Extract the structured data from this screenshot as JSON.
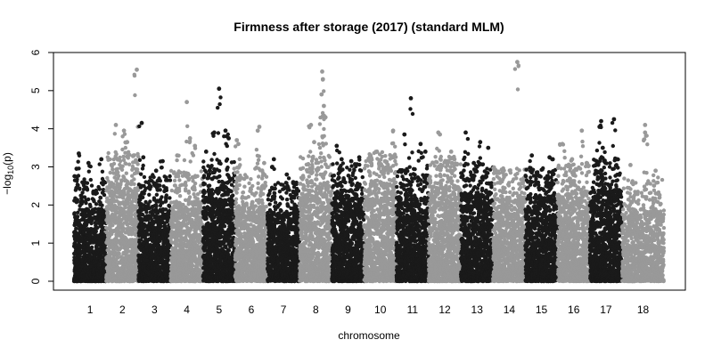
{
  "chart_data": {
    "type": "scatter",
    "subtype": "manhattan",
    "title": "Firmness after storage (2017) (standard MLM)",
    "xlabel": "chromosome",
    "ylabel_prefix": "−log",
    "ylabel_sub": "10",
    "ylabel_suffix": "(p)",
    "ylim": [
      0,
      6
    ],
    "yticks": [
      0,
      1,
      2,
      3,
      4,
      5,
      6
    ],
    "grid": false,
    "legend": "none",
    "colors": {
      "odd": "#1a1a1a",
      "even": "#999999"
    },
    "chromosomes": [
      {
        "label": "1",
        "color": "odd",
        "x_range": [
          0.0,
          1.0
        ],
        "base_max": 1.9,
        "peaks": [
          [
            0.15,
            3.35
          ],
          [
            0.08,
            2.95
          ],
          [
            0.45,
            3.1
          ],
          [
            0.85,
            3.2
          ]
        ]
      },
      {
        "label": "2",
        "color": "even",
        "x_range": [
          1.0,
          2.0
        ],
        "base_max": 2.6,
        "peaks": [
          [
            0.3,
            4.1
          ],
          [
            0.55,
            3.95
          ],
          [
            0.65,
            3.65
          ],
          [
            0.95,
            5.55
          ],
          [
            0.85,
            3.3
          ]
        ]
      },
      {
        "label": "3",
        "color": "odd",
        "x_range": [
          2.0,
          3.0
        ],
        "base_max": 2.0,
        "peaks": [
          [
            0.1,
            4.15
          ],
          [
            0.15,
            3.25
          ],
          [
            0.75,
            3.15
          ],
          [
            0.55,
            2.9
          ]
        ]
      },
      {
        "label": "4",
        "color": "even",
        "x_range": [
          3.0,
          4.0
        ],
        "base_max": 2.1,
        "peaks": [
          [
            0.5,
            4.7
          ],
          [
            0.6,
            3.75
          ],
          [
            0.75,
            3.55
          ],
          [
            0.2,
            3.3
          ]
        ]
      },
      {
        "label": "5",
        "color": "odd",
        "x_range": [
          4.0,
          5.0
        ],
        "base_max": 2.4,
        "peaks": [
          [
            0.5,
            5.05
          ],
          [
            0.35,
            3.9
          ],
          [
            0.7,
            3.95
          ],
          [
            0.8,
            3.75
          ],
          [
            0.1,
            3.4
          ]
        ]
      },
      {
        "label": "6",
        "color": "even",
        "x_range": [
          5.0,
          6.0
        ],
        "base_max": 2.0,
        "peaks": [
          [
            0.05,
            3.7
          ],
          [
            0.1,
            3.6
          ],
          [
            0.75,
            4.05
          ],
          [
            0.7,
            3.95
          ],
          [
            0.9,
            3.1
          ]
        ]
      },
      {
        "label": "7",
        "color": "odd",
        "x_range": [
          6.0,
          7.0
        ],
        "base_max": 1.8,
        "peaks": [
          [
            0.15,
            3.0
          ],
          [
            0.2,
            3.2
          ],
          [
            0.6,
            2.8
          ],
          [
            0.8,
            2.6
          ]
        ]
      },
      {
        "label": "8",
        "color": "even",
        "x_range": [
          7.0,
          8.0
        ],
        "base_max": 2.5,
        "peaks": [
          [
            0.35,
            4.1
          ],
          [
            0.45,
            3.65
          ],
          [
            0.7,
            5.5
          ],
          [
            0.72,
            5.3
          ],
          [
            0.75,
            4.6
          ],
          [
            0.68,
            4.9
          ],
          [
            0.8,
            4.3
          ]
        ]
      },
      {
        "label": "9",
        "color": "odd",
        "x_range": [
          8.0,
          9.0
        ],
        "base_max": 2.3,
        "peaks": [
          [
            0.15,
            3.55
          ],
          [
            0.3,
            3.2
          ],
          [
            0.6,
            3.15
          ],
          [
            0.85,
            3.25
          ]
        ]
      },
      {
        "label": "10",
        "color": "even",
        "x_range": [
          9.0,
          10.0
        ],
        "base_max": 2.6,
        "peaks": [
          [
            0.2,
            3.3
          ],
          [
            0.4,
            3.4
          ],
          [
            0.65,
            3.15
          ],
          [
            0.9,
            3.95
          ]
        ]
      },
      {
        "label": "11",
        "color": "odd",
        "x_range": [
          10.0,
          11.0
        ],
        "base_max": 2.2,
        "peaks": [
          [
            0.25,
            3.85
          ],
          [
            0.45,
            4.8
          ],
          [
            0.75,
            3.6
          ],
          [
            0.9,
            3.4
          ]
        ]
      },
      {
        "label": "12",
        "color": "even",
        "x_range": [
          11.0,
          12.0
        ],
        "base_max": 2.5,
        "peaks": [
          [
            0.3,
            3.9
          ],
          [
            0.35,
            3.85
          ],
          [
            0.7,
            3.4
          ],
          [
            0.8,
            3.2
          ]
        ]
      },
      {
        "label": "13",
        "color": "odd",
        "x_range": [
          12.0,
          13.0
        ],
        "base_max": 2.3,
        "peaks": [
          [
            0.15,
            3.9
          ],
          [
            0.6,
            3.65
          ],
          [
            0.85,
            3.5
          ],
          [
            0.4,
            3.1
          ]
        ]
      },
      {
        "label": "14",
        "color": "even",
        "x_range": [
          13.0,
          14.0
        ],
        "base_max": 2.2,
        "peaks": [
          [
            0.75,
            5.75
          ],
          [
            0.3,
            2.85
          ],
          [
            0.95,
            2.7
          ]
        ]
      },
      {
        "label": "15",
        "color": "odd",
        "x_range": [
          14.0,
          15.0
        ],
        "base_max": 2.2,
        "peaks": [
          [
            0.2,
            3.3
          ],
          [
            0.35,
            2.85
          ],
          [
            0.75,
            3.25
          ],
          [
            0.85,
            3.2
          ]
        ]
      },
      {
        "label": "16",
        "color": "even",
        "x_range": [
          15.0,
          16.0
        ],
        "base_max": 2.3,
        "peaks": [
          [
            0.15,
            3.6
          ],
          [
            0.45,
            3.2
          ],
          [
            0.75,
            3.95
          ],
          [
            0.9,
            3.1
          ]
        ]
      },
      {
        "label": "17",
        "color": "odd",
        "x_range": [
          16.0,
          17.0
        ],
        "base_max": 2.4,
        "peaks": [
          [
            0.35,
            4.2
          ],
          [
            0.4,
            3.5
          ],
          [
            0.75,
            4.25
          ],
          [
            0.85,
            3.2
          ],
          [
            0.3,
            4.05
          ]
        ]
      },
      {
        "label": "18",
        "color": "even",
        "x_range": [
          17.0,
          18.3
        ],
        "base_max": 1.9,
        "peaks": [
          [
            0.2,
            3.05
          ],
          [
            0.55,
            4.1
          ],
          [
            0.55,
            3.9
          ],
          [
            0.8,
            2.9
          ]
        ]
      }
    ]
  }
}
